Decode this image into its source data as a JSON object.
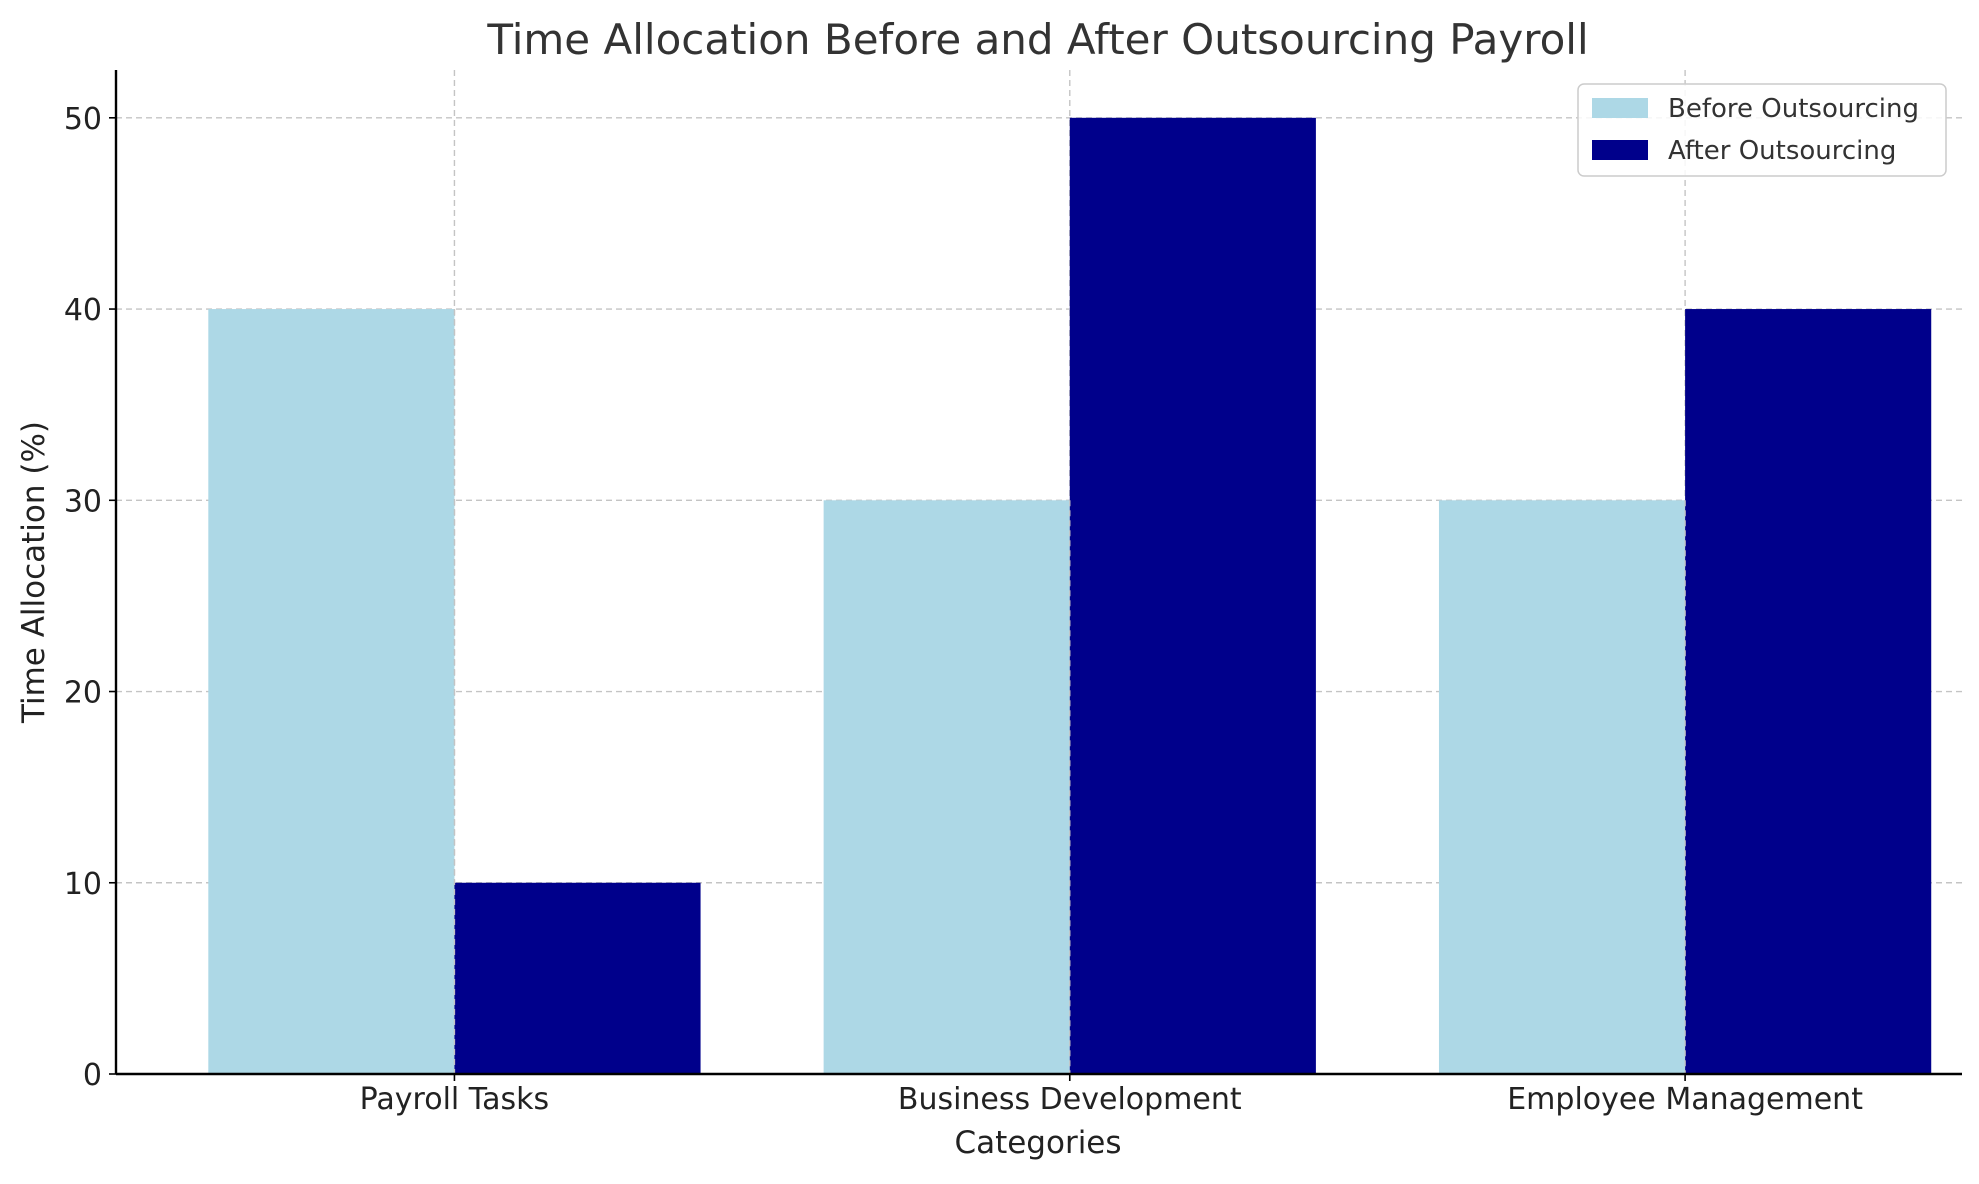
{
  "chart_data": {
    "type": "bar",
    "title": "Time Allocation Before and After Outsourcing Payroll",
    "xlabel": "Categories",
    "ylabel": "Time Allocation (%)",
    "categories": [
      "Payroll Tasks",
      "Business Development",
      "Employee Management"
    ],
    "series": [
      {
        "name": "Before Outsourcing",
        "values": [
          40,
          30,
          30
        ],
        "color": "#add8e6"
      },
      {
        "name": "After Outsourcing",
        "values": [
          10,
          50,
          40
        ],
        "color": "#00008b"
      }
    ],
    "ylim": [
      0,
      52.5
    ],
    "yticks": [
      0,
      10,
      20,
      30,
      40,
      50
    ],
    "grid": true,
    "legend_position": "top-right"
  }
}
